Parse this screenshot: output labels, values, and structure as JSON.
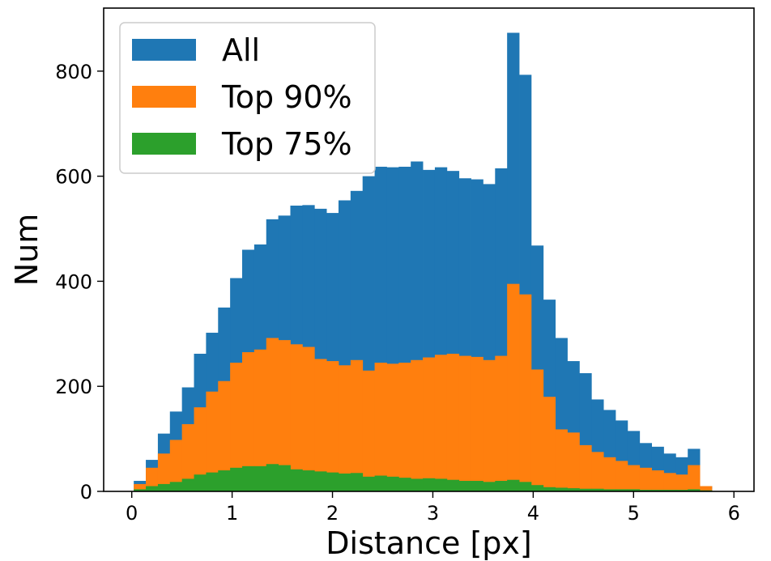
{
  "chart_data": {
    "type": "bar",
    "title": "",
    "xlabel": "Distance [px]",
    "ylabel": "Num",
    "xlim": [
      -0.28,
      6.2
    ],
    "ylim": [
      0,
      920
    ],
    "bin_width": 0.12,
    "x_ticks": [
      0,
      1,
      2,
      3,
      4,
      5,
      6
    ],
    "y_ticks": [
      0,
      200,
      400,
      600,
      800
    ],
    "grid": false,
    "legend_position": "top-left",
    "bin_edges": [
      0.02,
      0.14,
      0.26,
      0.38,
      0.5,
      0.62,
      0.74,
      0.86,
      0.98,
      1.1,
      1.22,
      1.34,
      1.46,
      1.58,
      1.7,
      1.82,
      1.94,
      2.06,
      2.18,
      2.3,
      2.42,
      2.54,
      2.66,
      2.78,
      2.9,
      3.02,
      3.14,
      3.26,
      3.38,
      3.5,
      3.62,
      3.74,
      3.86,
      3.98,
      4.1,
      4.22,
      4.34,
      4.46,
      4.58,
      4.7,
      4.82,
      4.94,
      5.06,
      5.18,
      5.3,
      5.42,
      5.54,
      5.66,
      5.78
    ],
    "series": [
      {
        "name": "All",
        "color": "#1f77b4",
        "values": [
          20,
          60,
          110,
          152,
          198,
          262,
          302,
          350,
          406,
          460,
          470,
          518,
          525,
          544,
          545,
          538,
          530,
          554,
          572,
          600,
          618,
          617,
          618,
          628,
          612,
          617,
          610,
          596,
          594,
          585,
          615,
          873,
          793,
          468,
          365,
          292,
          248,
          225,
          175,
          155,
          135,
          115,
          92,
          85,
          72,
          65,
          81,
          10
        ]
      },
      {
        "name": "Top 90%",
        "color": "#ff7f0e",
        "values": [
          14,
          45,
          72,
          98,
          128,
          160,
          190,
          210,
          245,
          265,
          270,
          292,
          288,
          280,
          275,
          252,
          248,
          240,
          250,
          230,
          245,
          243,
          245,
          250,
          255,
          260,
          262,
          258,
          256,
          250,
          258,
          395,
          375,
          232,
          180,
          118,
          112,
          88,
          75,
          65,
          58,
          50,
          45,
          40,
          35,
          32,
          50,
          10
        ]
      },
      {
        "name": "Top 75%",
        "color": "#2ca02c",
        "values": [
          4,
          10,
          14,
          18,
          24,
          32,
          36,
          40,
          45,
          48,
          48,
          52,
          50,
          42,
          40,
          38,
          36,
          34,
          35,
          28,
          30,
          28,
          26,
          24,
          25,
          24,
          22,
          20,
          20,
          18,
          20,
          22,
          18,
          12,
          8,
          7,
          6,
          5,
          5,
          4,
          4,
          4,
          3,
          3,
          3,
          3,
          4,
          2
        ]
      }
    ]
  }
}
